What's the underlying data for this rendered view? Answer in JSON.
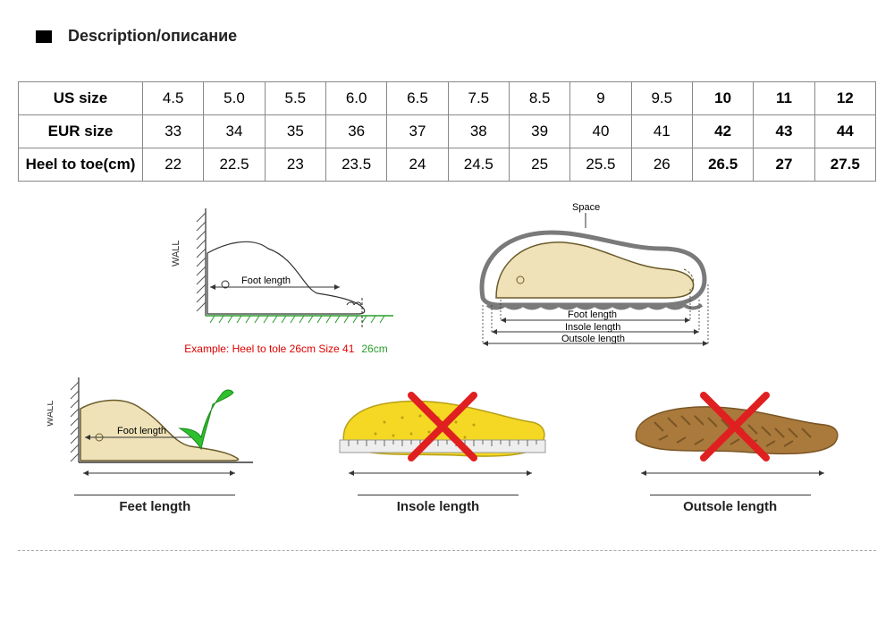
{
  "header": {
    "title": "Description/описание"
  },
  "table": {
    "row_headers": [
      "US size",
      "EUR size",
      "Heel to toe(cm)"
    ],
    "us": [
      "4.5",
      "5.0",
      "5.5",
      "6.0",
      "6.5",
      "7.5",
      "8.5",
      "9",
      "9.5",
      "10",
      "11",
      "12"
    ],
    "eur": [
      "33",
      "34",
      "35",
      "36",
      "37",
      "38",
      "39",
      "40",
      "41",
      "42",
      "43",
      "44"
    ],
    "heel": [
      "22",
      "22.5",
      "23",
      "23.5",
      "24",
      "24.5",
      "25",
      "25.5",
      "26",
      "26.5",
      "27",
      "27.5"
    ],
    "bold_last_n": 3
  },
  "diagrams": {
    "wall_label": "WALL",
    "foot_length_label": "Foot length",
    "space_label": "Space",
    "insole_label_small": "Insole length",
    "outsole_label_small": "Outsole length",
    "example_text": "Example: Heel to tole 26cm Size 41",
    "cm_text": "26cm",
    "captions": {
      "feet": "Feet length",
      "insole": "Insole length",
      "outsole": "Outsole length"
    },
    "colors": {
      "foot_fill": "#efe2b8",
      "foot_stroke": "#6b5b2a",
      "shoe_outer": "#7a7a7a",
      "insole_yellow": "#f4d823",
      "outsole_brown": "#a97a3c",
      "check_green": "#2fbf2f",
      "cross_red": "#e02020",
      "wall_hatch": "#555555",
      "ground_green": "#2a9d2a",
      "arrow": "#333333"
    }
  }
}
